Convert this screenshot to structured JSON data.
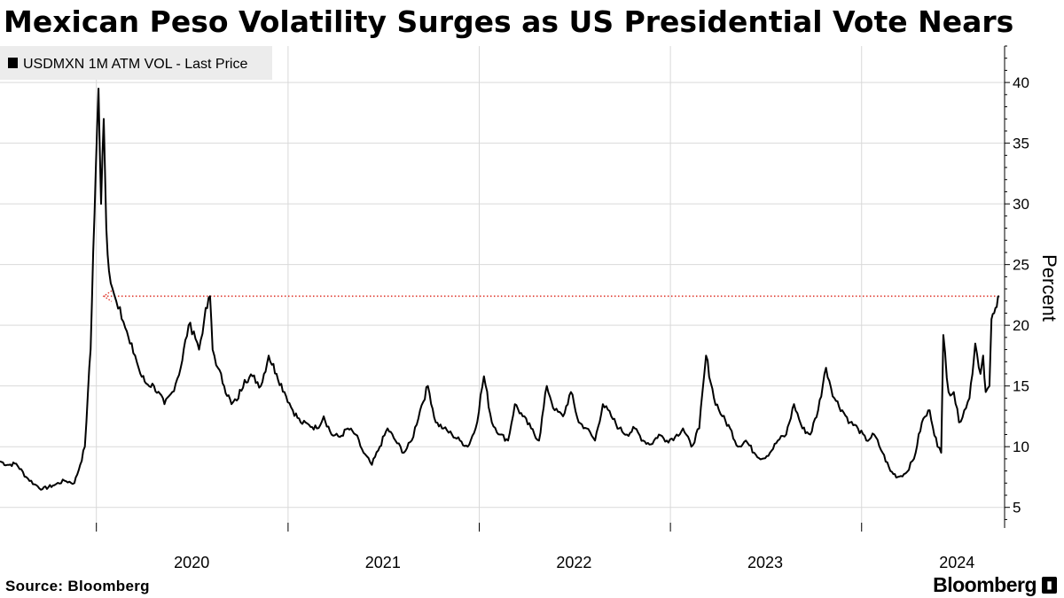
{
  "header": {
    "title": "Mexican Peso Volatility Surges as US Presidential Vote Nears"
  },
  "footer": {
    "source": "Source:  Bloomberg",
    "brand": "Bloomberg"
  },
  "colors": {
    "line": "#000000",
    "grid": "#d9d9d9",
    "reference": "#e03a2f",
    "legend_bg": "#ececec"
  },
  "chart_data": {
    "type": "line",
    "title": "Mexican Peso Volatility Surges as US Presidential Vote Nears",
    "ylabel": "Percent",
    "ylim": [
      3.3,
      43.0
    ],
    "xlim": [
      "2019-07-01",
      "2024-09-30"
    ],
    "yticks": [
      5,
      10,
      15,
      20,
      25,
      30,
      35,
      40
    ],
    "xticks": [
      "2020",
      "2021",
      "2022",
      "2023",
      "2024"
    ],
    "grid": true,
    "legend": {
      "placement": "top-left",
      "entries": [
        "USDMXN 1M ATM VOL - Last Price"
      ]
    },
    "reference_line": {
      "y": 22.4,
      "style": "dotted",
      "x_from": "2020-01-15",
      "x_to": "2024-09-20"
    },
    "series": [
      {
        "name": "USDMXN 1M ATM VOL - Last Price",
        "x": [
          "2019-07-01",
          "2019-07-15",
          "2019-08-01",
          "2019-08-20",
          "2019-09-05",
          "2019-09-20",
          "2019-10-10",
          "2019-11-01",
          "2019-11-20",
          "2019-12-01",
          "2019-12-10",
          "2019-12-16",
          "2019-12-21",
          "2019-12-26",
          "2019-12-31",
          "2020-01-05",
          "2020-01-10",
          "2020-01-15",
          "2020-01-20",
          "2020-01-25",
          "2020-02-01",
          "2020-02-08",
          "2020-02-15",
          "2020-02-25",
          "2020-03-05",
          "2020-03-15",
          "2020-03-25",
          "2020-04-05",
          "2020-04-20",
          "2020-05-10",
          "2020-05-25",
          "2020-06-10",
          "2020-06-25",
          "2020-07-05",
          "2020-07-15",
          "2020-07-25",
          "2020-08-05",
          "2020-08-10",
          "2020-08-20",
          "2020-09-01",
          "2020-09-15",
          "2020-09-25",
          "2020-10-10",
          "2020-10-25",
          "2020-11-10",
          "2020-11-25",
          "2020-12-10",
          "2020-12-25",
          "2021-01-10",
          "2021-01-25",
          "2021-02-10",
          "2021-02-25",
          "2021-03-10",
          "2021-03-25",
          "2021-04-10",
          "2021-04-25",
          "2021-05-10",
          "2021-05-25",
          "2021-06-10",
          "2021-06-25",
          "2021-07-10",
          "2021-07-25",
          "2021-08-10",
          "2021-08-25",
          "2021-09-10",
          "2021-09-25",
          "2021-10-10",
          "2021-10-25",
          "2021-11-10",
          "2021-11-25",
          "2021-12-10",
          "2021-12-25",
          "2022-01-10",
          "2022-01-25",
          "2022-02-10",
          "2022-02-25",
          "2022-03-10",
          "2022-03-25",
          "2022-04-10",
          "2022-04-25",
          "2022-05-10",
          "2022-05-25",
          "2022-06-10",
          "2022-06-25",
          "2022-07-10",
          "2022-07-25",
          "2022-08-10",
          "2022-08-25",
          "2022-09-10",
          "2022-09-25",
          "2022-10-10",
          "2022-10-25",
          "2022-11-10",
          "2022-11-25",
          "2022-12-10",
          "2022-12-25",
          "2023-01-10",
          "2023-01-25",
          "2023-02-10",
          "2023-02-25",
          "2023-03-10",
          "2023-03-25",
          "2023-04-10",
          "2023-04-25",
          "2023-05-10",
          "2023-05-25",
          "2023-06-10",
          "2023-06-25",
          "2023-07-10",
          "2023-07-25",
          "2023-08-10",
          "2023-08-25",
          "2023-09-10",
          "2023-09-25",
          "2023-10-10",
          "2023-10-25",
          "2023-11-10",
          "2023-11-25",
          "2023-12-10",
          "2023-12-25",
          "2024-01-10",
          "2024-01-25",
          "2024-02-10",
          "2024-02-25",
          "2024-03-10",
          "2024-03-25",
          "2024-04-10",
          "2024-04-25",
          "2024-05-10",
          "2024-05-25",
          "2024-06-01",
          "2024-06-05",
          "2024-06-15",
          "2024-06-25",
          "2024-07-05",
          "2024-07-15",
          "2024-07-25",
          "2024-08-05",
          "2024-08-15",
          "2024-08-20",
          "2024-08-25",
          "2024-09-01",
          "2024-09-05",
          "2024-09-10",
          "2024-09-15",
          "2024-09-20"
        ],
        "values": [
          8.8,
          8.5,
          8.6,
          7.5,
          6.9,
          6.5,
          6.8,
          7.2,
          7.0,
          8.5,
          10.0,
          14.5,
          18.0,
          26.0,
          33.0,
          39.5,
          30.0,
          37.0,
          28.0,
          24.5,
          23.0,
          22.0,
          21.5,
          19.8,
          18.5,
          17.5,
          16.0,
          15.2,
          15.0,
          13.5,
          14.5,
          16.5,
          20.0,
          19.5,
          18.0,
          20.5,
          22.4,
          18.0,
          16.5,
          15.0,
          13.5,
          13.8,
          15.5,
          15.8,
          15.0,
          17.5,
          16.0,
          14.5,
          13.0,
          12.0,
          11.8,
          11.5,
          12.5,
          11.0,
          10.8,
          11.5,
          11.0,
          9.5,
          8.5,
          10.0,
          11.5,
          10.5,
          9.5,
          10.5,
          13.0,
          15.0,
          12.0,
          11.5,
          11.0,
          10.5,
          10.0,
          11.5,
          15.8,
          12.0,
          11.0,
          10.5,
          13.5,
          12.5,
          11.5,
          10.5,
          15.0,
          13.0,
          12.5,
          14.5,
          12.0,
          11.5,
          10.5,
          13.5,
          12.5,
          11.5,
          11.0,
          11.5,
          10.5,
          10.2,
          11.0,
          10.5,
          10.8,
          11.5,
          10.0,
          11.5,
          17.5,
          14.0,
          12.5,
          11.5,
          10.0,
          10.5,
          9.5,
          9.0,
          9.5,
          10.5,
          11.0,
          13.5,
          11.5,
          11.0,
          13.0,
          16.5,
          14.0,
          13.0,
          12.0,
          11.5,
          10.5,
          11.0,
          9.5,
          8.0,
          7.5,
          7.8,
          9.0,
          12.0,
          13.0,
          10.0,
          9.5,
          19.2,
          14.5,
          14.5,
          12.0,
          13.0,
          14.0,
          18.5,
          16.0,
          17.5,
          14.5,
          15.0,
          20.5,
          21.0,
          21.5,
          22.4
        ]
      }
    ]
  }
}
